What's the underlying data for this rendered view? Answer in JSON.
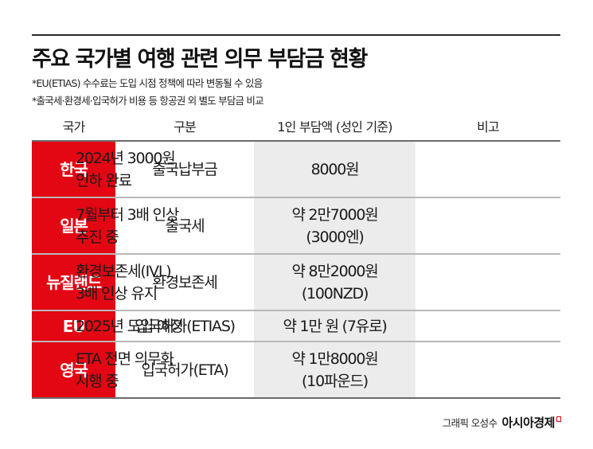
{
  "header": {
    "title": "주요 국가별 여행 관련 의무 부담금 현황",
    "notes": [
      "*EU(ETIAS) 수수료는 도입 시점 정책에 따라 변동될 수 있음",
      "*출국세·환경세·입국허가 비용 등 항공권 외 별도 부담금 비교"
    ]
  },
  "table": {
    "columns": [
      "국가",
      "구분",
      "1인 부담액 (성인 기준)",
      "비고"
    ],
    "rows": [
      {
        "country": "한국",
        "type": "출국납부금",
        "amount": [
          "8000원"
        ],
        "note": [
          "2024년 3000원",
          "인하 완료"
        ]
      },
      {
        "country": "일본",
        "type": "출국세",
        "amount": [
          "약 2만7000원",
          "(3000엔)"
        ],
        "note": [
          "7월부터 3배 인상",
          "추진 중"
        ]
      },
      {
        "country": "뉴질랜드",
        "type": "환경보존세",
        "amount": [
          "약 8만2000원",
          "(100NZD)"
        ],
        "note": [
          "환경보존세(IVL)",
          "3배 인상 유지"
        ]
      },
      {
        "country": "EU",
        "type": "입국허가(ETIAS)",
        "amount": [
          "약 1만 원 (7유로)"
        ],
        "note": [
          "2025년 도입 예정"
        ]
      },
      {
        "country": "영국",
        "type": "입국허가(ETA)",
        "amount": [
          "약 1만8000원",
          "(10파운드)"
        ],
        "note": [
          "ETA 전면 의무화",
          "시행 중"
        ]
      }
    ]
  },
  "credit": {
    "author": "그래픽 오성수",
    "brand": "아시아경제"
  },
  "colors": {
    "accent_red": "#e30613",
    "amount_column_bg": "#ececec",
    "rule": "#2a2a2a"
  }
}
